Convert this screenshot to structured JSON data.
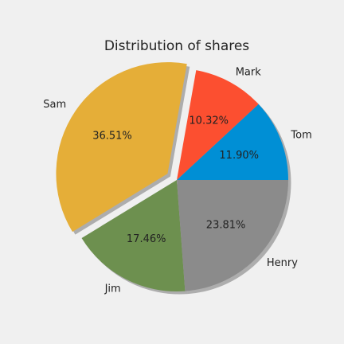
{
  "chart_data": {
    "type": "pie",
    "title": "Distribution of shares",
    "slices": [
      {
        "label": "Tom",
        "value": 11.9,
        "pct_label": "11.90%",
        "color": "#008fd5",
        "exploded": false
      },
      {
        "label": "Mark",
        "value": 10.32,
        "pct_label": "10.32%",
        "color": "#fc4f30",
        "exploded": false
      },
      {
        "label": "Sam",
        "value": 36.51,
        "pct_label": "36.51%",
        "color": "#e5ae38",
        "exploded": true
      },
      {
        "label": "Jim",
        "value": 17.46,
        "pct_label": "17.46%",
        "color": "#6d904f",
        "exploded": false
      },
      {
        "label": "Henry",
        "value": 23.81,
        "pct_label": "23.81%",
        "color": "#8b8b8b",
        "exploded": false
      }
    ],
    "start_angle_deg": 0,
    "direction": "counterclockwise",
    "shadow": true,
    "background_color": "#f0f0f0"
  }
}
